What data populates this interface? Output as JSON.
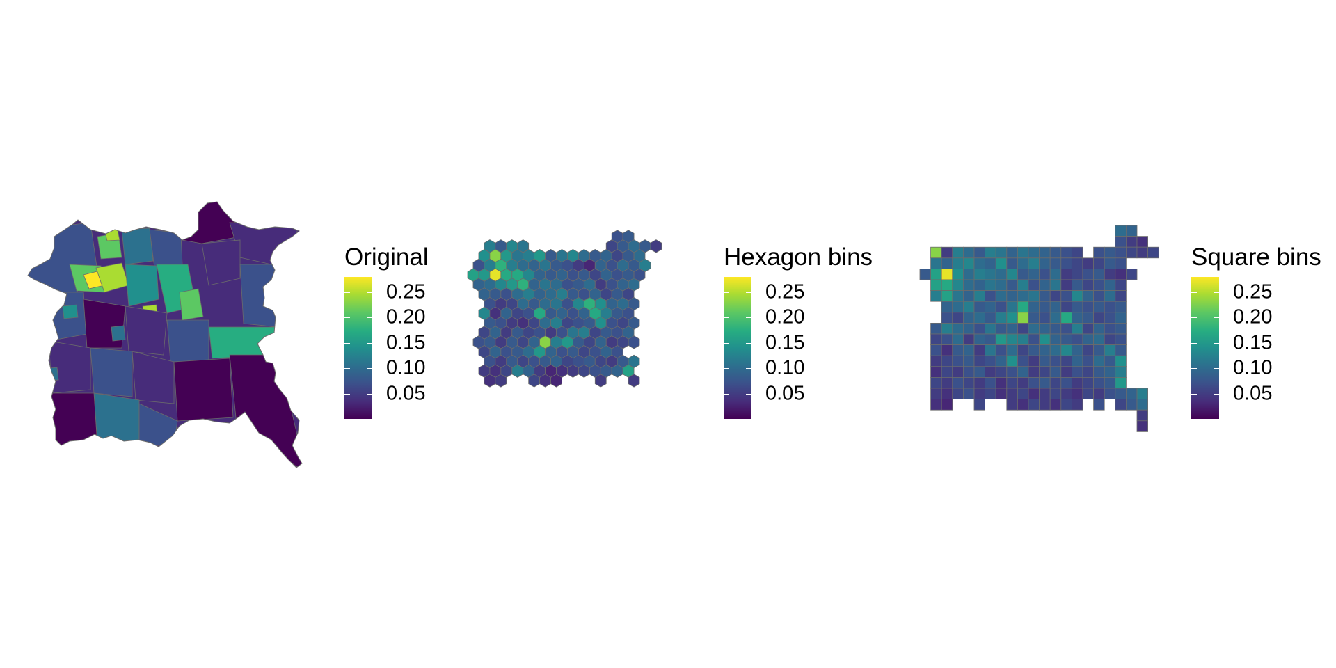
{
  "colors": {
    "scale": [
      "#440154",
      "#472c7a",
      "#3b518b",
      "#2c718e",
      "#21908d",
      "#27ad81",
      "#5cc863",
      "#aadc32",
      "#fde725"
    ],
    "border": "#6b6b6b",
    "tick": "#ffffff"
  },
  "legend": {
    "domain": [
      0.0,
      0.28
    ],
    "ticks": [
      "0.25",
      "0.20",
      "0.15",
      "0.10",
      "0.05"
    ],
    "tick_values": [
      0.25,
      0.2,
      0.15,
      0.1,
      0.05
    ]
  },
  "panels": [
    {
      "id": "original",
      "legend_title": "Original"
    },
    {
      "id": "hexagon",
      "legend_title": "Hexagon bins"
    },
    {
      "id": "square",
      "legend_title": "Square bins"
    }
  ],
  "chart_data": [
    {
      "type": "heatmap",
      "title": "Original",
      "value_range": [
        0.02,
        0.27
      ],
      "scale": "viridis",
      "note_values": [
        0.05,
        0.1,
        0.15,
        0.2,
        0.25
      ]
    },
    {
      "type": "heatmap",
      "title": "Hexagon bins",
      "value_range": [
        0.02,
        0.27
      ],
      "scale": "viridis",
      "rows": [
        [
          null,
          null,
          null,
          null,
          null,
          null,
          null,
          null,
          null,
          null,
          null,
          null,
          null,
          0.07,
          0.08,
          null,
          null,
          null
        ],
        [
          null,
          0.12,
          0.08,
          0.13,
          0.11,
          null,
          null,
          null,
          null,
          null,
          null,
          null,
          0.06,
          0.08,
          0.1,
          0.08,
          0.05,
          null
        ],
        [
          null,
          0.14,
          0.23,
          0.15,
          0.11,
          0.12,
          0.15,
          0.08,
          0.11,
          0.13,
          0.1,
          0.08,
          0.09,
          0.06,
          0.08,
          0.1,
          null,
          null
        ],
        [
          0.07,
          0.12,
          0.18,
          0.12,
          0.1,
          0.09,
          0.11,
          0.08,
          0.07,
          0.05,
          0.03,
          0.09,
          0.07,
          0.1,
          0.08,
          0.12,
          null,
          null
        ],
        [
          0.16,
          0.15,
          0.27,
          0.17,
          0.17,
          0.13,
          0.09,
          0.08,
          0.09,
          0.07,
          0.08,
          0.06,
          0.09,
          0.07,
          0.08,
          0.07,
          null,
          null
        ],
        [
          0.09,
          0.1,
          0.13,
          0.15,
          0.18,
          0.09,
          0.11,
          0.1,
          0.07,
          0.08,
          0.1,
          0.05,
          0.07,
          0.09,
          0.1,
          null,
          null,
          null
        ],
        [
          null,
          0.09,
          0.08,
          0.07,
          0.1,
          0.12,
          0.09,
          0.1,
          0.12,
          0.08,
          0.07,
          0.09,
          0.06,
          0.08,
          0.06,
          null,
          null,
          null
        ],
        [
          null,
          0.07,
          0.05,
          0.06,
          0.1,
          0.08,
          0.1,
          0.11,
          0.07,
          0.13,
          0.18,
          0.14,
          0.09,
          0.1,
          0.08,
          null,
          null,
          null
        ],
        [
          null,
          0.13,
          0.04,
          0.09,
          0.06,
          0.07,
          0.17,
          0.08,
          0.09,
          0.07,
          0.09,
          0.17,
          0.12,
          0.08,
          0.07,
          null,
          null,
          null
        ],
        [
          null,
          0.08,
          0.07,
          0.05,
          0.04,
          0.06,
          0.1,
          0.12,
          0.06,
          0.07,
          0.08,
          0.14,
          0.07,
          0.06,
          0.08,
          null,
          null,
          null
        ],
        [
          null,
          0.06,
          0.09,
          0.05,
          0.08,
          0.06,
          0.07,
          0.05,
          0.07,
          0.11,
          0.12,
          0.06,
          0.08,
          0.07,
          0.09,
          null,
          null,
          null
        ],
        [
          0.07,
          0.08,
          0.05,
          0.08,
          0.06,
          0.09,
          0.23,
          0.12,
          0.15,
          0.08,
          0.06,
          0.09,
          0.05,
          0.06,
          0.07,
          null,
          null,
          null
        ],
        [
          null,
          0.06,
          0.09,
          0.07,
          0.08,
          0.1,
          0.15,
          0.09,
          0.07,
          0.08,
          0.06,
          0.07,
          0.09,
          0.07,
          null,
          null,
          null,
          null
        ],
        [
          null,
          0.07,
          0.05,
          0.08,
          0.06,
          0.07,
          0.08,
          0.09,
          0.06,
          0.07,
          0.08,
          0.06,
          0.05,
          0.08,
          0.11,
          null,
          null,
          null
        ],
        [
          null,
          0.05,
          0.04,
          0.06,
          0.12,
          0.09,
          0.05,
          0.03,
          0.04,
          0.05,
          0.06,
          0.07,
          0.08,
          0.09,
          0.16,
          null,
          null,
          null
        ],
        [
          null,
          0.04,
          0.05,
          null,
          null,
          0.06,
          0.04,
          0.03,
          null,
          null,
          null,
          0.05,
          null,
          null,
          0.05,
          null,
          null,
          null
        ]
      ]
    },
    {
      "type": "heatmap",
      "title": "Square bins",
      "value_range": [
        0.02,
        0.27
      ],
      "scale": "viridis",
      "rows": [
        [
          null,
          null,
          null,
          null,
          null,
          null,
          null,
          null,
          null,
          null,
          null,
          null,
          null,
          null,
          null,
          null,
          null,
          null,
          0.1,
          0.09,
          null,
          null
        ],
        [
          null,
          null,
          null,
          null,
          null,
          null,
          null,
          null,
          null,
          null,
          null,
          null,
          null,
          null,
          null,
          null,
          null,
          null,
          0.07,
          0.05,
          0.04,
          null
        ],
        [
          null,
          0.23,
          0.05,
          0.12,
          0.1,
          0.08,
          0.12,
          0.11,
          0.09,
          0.11,
          0.1,
          0.09,
          0.08,
          0.07,
          0.06,
          null,
          0.07,
          0.08,
          0.07,
          0.06,
          0.05,
          0.06
        ],
        [
          null,
          0.11,
          0.09,
          0.12,
          0.13,
          0.1,
          0.09,
          0.14,
          0.08,
          0.1,
          0.12,
          0.09,
          0.08,
          0.07,
          0.06,
          0.05,
          0.06,
          0.08,
          0.07,
          null,
          null,
          null
        ],
        [
          0.08,
          0.16,
          0.27,
          0.14,
          0.1,
          0.12,
          0.11,
          0.1,
          0.13,
          0.08,
          0.09,
          0.07,
          0.1,
          0.05,
          0.06,
          0.07,
          0.08,
          0.05,
          0.04,
          0.06,
          null,
          null
        ],
        [
          null,
          0.16,
          0.17,
          0.13,
          0.1,
          0.09,
          0.11,
          0.1,
          0.08,
          0.12,
          0.07,
          0.09,
          0.11,
          0.05,
          0.08,
          0.06,
          0.07,
          0.09,
          0.06,
          null,
          null,
          null
        ],
        [
          null,
          0.12,
          0.16,
          0.11,
          0.09,
          0.12,
          0.07,
          0.1,
          0.09,
          0.1,
          0.11,
          0.08,
          0.06,
          0.07,
          0.13,
          0.09,
          0.07,
          0.1,
          0.06,
          null,
          null,
          null
        ],
        [
          null,
          null,
          0.09,
          0.1,
          0.12,
          0.08,
          0.09,
          0.07,
          0.11,
          0.17,
          0.09,
          0.08,
          0.09,
          0.06,
          0.08,
          0.07,
          0.08,
          0.07,
          0.08,
          null,
          null,
          null
        ],
        [
          null,
          null,
          0.07,
          0.06,
          0.09,
          0.1,
          0.08,
          0.12,
          0.14,
          0.23,
          0.08,
          0.07,
          0.1,
          0.17,
          0.09,
          0.08,
          0.06,
          0.07,
          0.09,
          null,
          null,
          null
        ],
        [
          null,
          0.08,
          0.12,
          0.1,
          0.09,
          0.07,
          0.11,
          0.08,
          0.09,
          0.06,
          0.1,
          0.09,
          0.08,
          0.07,
          0.12,
          0.06,
          0.09,
          0.07,
          0.08,
          null,
          null,
          null
        ],
        [
          null,
          0.06,
          0.07,
          0.1,
          0.05,
          0.09,
          0.08,
          0.15,
          0.13,
          0.12,
          0.07,
          0.14,
          0.09,
          0.08,
          0.07,
          0.09,
          0.1,
          0.06,
          0.07,
          null,
          null,
          null
        ],
        [
          null,
          0.07,
          0.04,
          0.08,
          0.09,
          0.05,
          0.11,
          0.07,
          0.1,
          0.06,
          0.08,
          0.09,
          0.1,
          0.13,
          0.09,
          0.06,
          0.08,
          0.12,
          0.08,
          null,
          null,
          null
        ],
        [
          null,
          0.05,
          0.06,
          0.07,
          0.08,
          0.06,
          0.07,
          0.09,
          0.14,
          0.07,
          0.05,
          0.08,
          0.07,
          0.06,
          0.09,
          0.07,
          0.1,
          0.08,
          0.14,
          null,
          null,
          null
        ],
        [
          null,
          0.04,
          0.06,
          0.05,
          0.07,
          0.08,
          0.05,
          0.06,
          0.07,
          0.09,
          0.05,
          0.06,
          0.08,
          0.05,
          0.07,
          0.06,
          0.08,
          0.09,
          0.12,
          null,
          null,
          null
        ],
        [
          null,
          0.06,
          0.05,
          0.07,
          0.06,
          0.05,
          0.07,
          0.04,
          0.06,
          0.05,
          0.07,
          0.08,
          0.06,
          0.07,
          0.05,
          0.06,
          0.07,
          0.08,
          0.15,
          null,
          null,
          null
        ],
        [
          null,
          0.05,
          0.04,
          0.06,
          0.07,
          0.05,
          0.06,
          0.04,
          0.05,
          0.06,
          0.04,
          0.05,
          0.06,
          0.05,
          0.04,
          0.06,
          0.05,
          0.07,
          0.08,
          0.09,
          0.12,
          null
        ],
        [
          null,
          0.04,
          0.03,
          null,
          null,
          0.06,
          null,
          null,
          0.05,
          0.04,
          0.06,
          0.05,
          0.04,
          0.06,
          0.05,
          null,
          0.07,
          null,
          0.06,
          0.08,
          0.1,
          null
        ],
        [
          null,
          null,
          null,
          null,
          null,
          null,
          null,
          null,
          null,
          null,
          null,
          null,
          null,
          null,
          null,
          null,
          null,
          null,
          null,
          null,
          0.05,
          null
        ],
        [
          null,
          null,
          null,
          null,
          null,
          null,
          null,
          null,
          null,
          null,
          null,
          null,
          null,
          null,
          null,
          null,
          null,
          null,
          null,
          null,
          0.04,
          null
        ]
      ]
    }
  ]
}
